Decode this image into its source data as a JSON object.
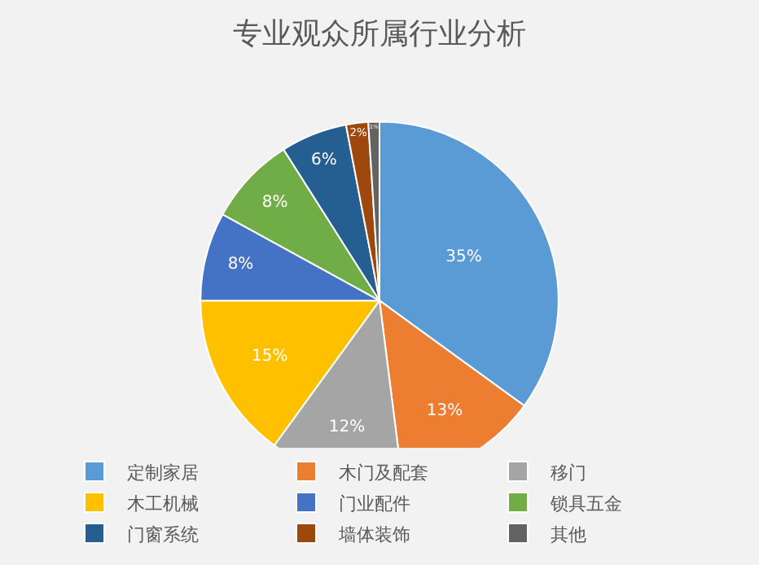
{
  "chart_data": {
    "type": "pie",
    "title": "专业观众所属行业分析",
    "categories": [
      "定制家居",
      "木门及配套",
      "移门",
      "木工机械",
      "门业配件",
      "锁具五金",
      "门窗系统",
      "墙体装饰",
      "其他"
    ],
    "values": [
      35,
      13,
      12,
      15,
      8,
      8,
      6,
      2,
      1
    ],
    "value_labels": [
      "35%",
      "13%",
      "12%",
      "15%",
      "8%",
      "8%",
      "6%",
      "2%",
      "1%"
    ],
    "colors": [
      "#5b9bd5",
      "#ed7d31",
      "#a5a5a5",
      "#ffc000",
      "#4472c4",
      "#70ad47",
      "#255e91",
      "#9e480e",
      "#636363"
    ],
    "legend": "bottom"
  }
}
